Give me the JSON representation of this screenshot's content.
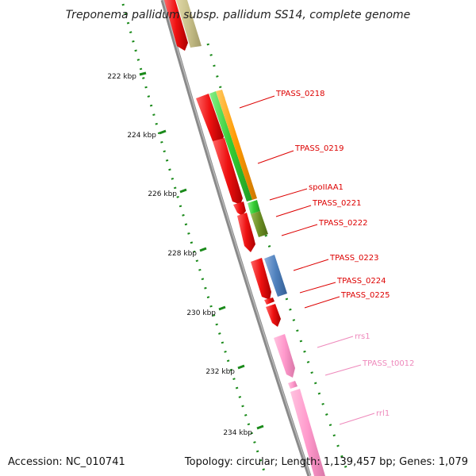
{
  "title": "Treponema pallidum subsp. pallidum SS14, complete genome",
  "footer": {
    "accession": "Accession: NC_010741",
    "summary": "Topology: circular; Length: 1,139,457 bp; Genes: 1,079"
  },
  "ruler": {
    "tick_labels": [
      "222 kbp",
      "224 kbp",
      "226 kbp",
      "228 kbp",
      "230 kbp",
      "232 kbp",
      "234 kbp"
    ]
  },
  "colors": {
    "backbone": "#8a8a8a",
    "cds_red": "#ee1111",
    "trna_or_rrna_pink": "#ff99cc",
    "green": "#33cc33",
    "orange": "#ff9900",
    "olive": "#6b8e23",
    "steel_blue": "#4f81bd",
    "khaki": "#c8c08a",
    "ruler_green": "#1a8a1a"
  },
  "gene_labels": [
    {
      "text": "TPASS_0218",
      "color": "#dd0000"
    },
    {
      "text": "TPASS_0219",
      "color": "#dd0000"
    },
    {
      "text": "spoIIAA1",
      "color": "#dd0000"
    },
    {
      "text": "TPASS_0221",
      "color": "#dd0000"
    },
    {
      "text": "TPASS_0222",
      "color": "#dd0000"
    },
    {
      "text": "TPASS_0223",
      "color": "#dd0000"
    },
    {
      "text": "TPASS_0224",
      "color": "#dd0000"
    },
    {
      "text": "TPASS_0225",
      "color": "#dd0000"
    },
    {
      "text": "rrs1",
      "color": "#ee88bb"
    },
    {
      "text": "TPASS_t0012",
      "color": "#ee88bb"
    },
    {
      "text": "rrl1",
      "color": "#ee88bb"
    }
  ]
}
